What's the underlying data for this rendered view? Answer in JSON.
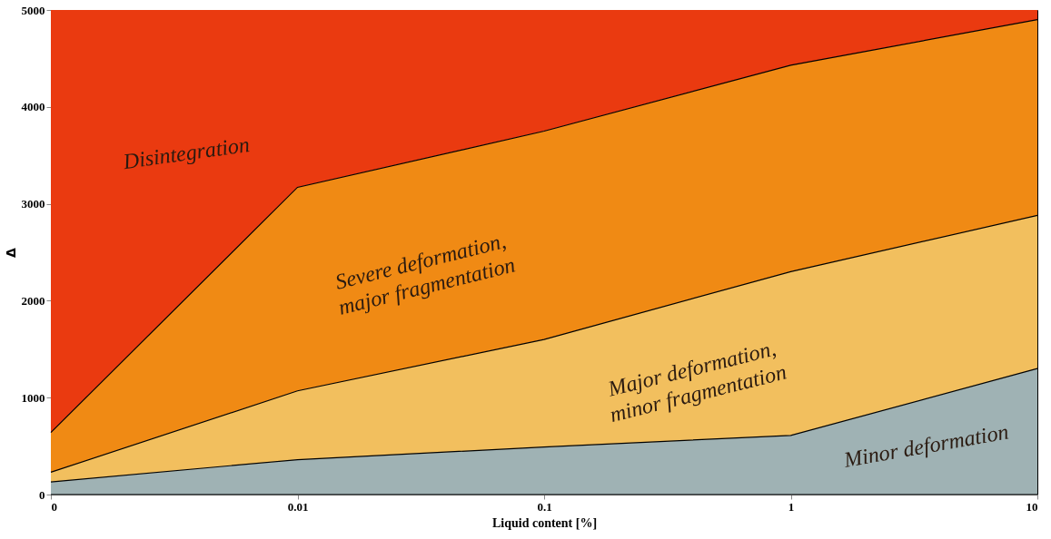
{
  "chart_data": {
    "type": "area",
    "stacked": true,
    "xlabel": "Liquid content [%]",
    "ylabel": "Δ",
    "categories": [
      "0",
      "0.01",
      "0.1",
      "1",
      "10"
    ],
    "ylim": [
      0,
      5000
    ],
    "yticks": [
      0,
      1000,
      2000,
      3000,
      4000,
      5000
    ],
    "grid": false,
    "series": [
      {
        "name": "Minor deformation",
        "color": "#9fb2b4",
        "values": [
          130,
          360,
          490,
          610,
          1300
        ]
      },
      {
        "name": "Major deformation,\nminor fragmentation",
        "color": "#f2bf5e",
        "values": [
          100,
          710,
          1110,
          1690,
          1580
        ]
      },
      {
        "name": "Severe deformation,\nmajor fragmentation",
        "color": "#f08a14",
        "values": [
          410,
          2100,
          2150,
          2130,
          2020
        ]
      },
      {
        "name": "Disintegration",
        "color": "#ea3a10",
        "values": [
          4360,
          1830,
          1250,
          570,
          100
        ]
      }
    ]
  }
}
